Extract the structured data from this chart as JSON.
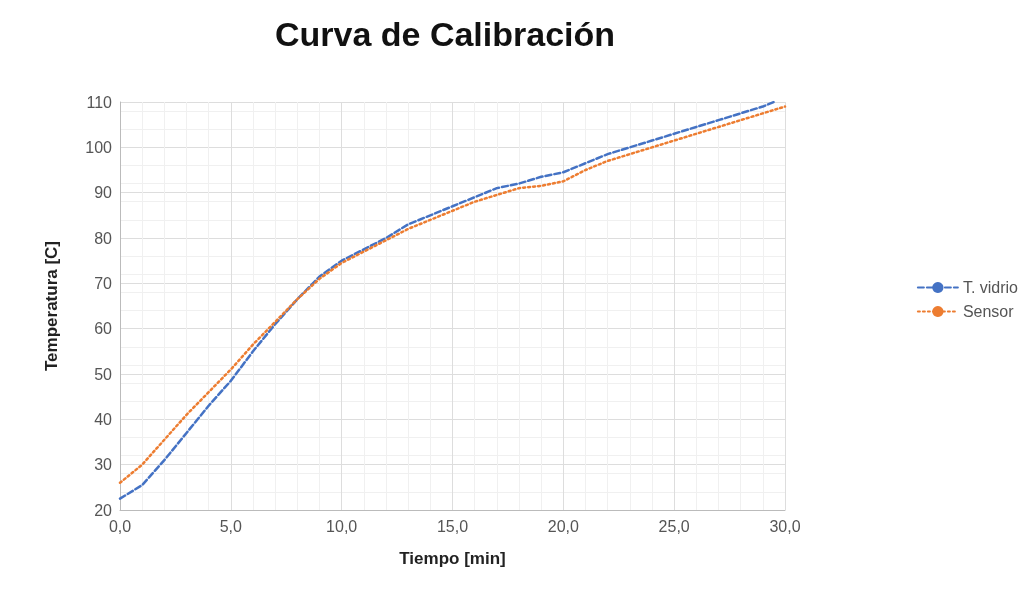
{
  "chart_data": {
    "type": "line",
    "title": "Curva de Calibración",
    "xlabel": "Tiempo [min]",
    "ylabel": "Temperatura [C]",
    "xlim": [
      0,
      30
    ],
    "xticks": [
      {
        "value": 0,
        "label": "0,0"
      },
      {
        "value": 5,
        "label": "5,0"
      },
      {
        "value": 10,
        "label": "10,0"
      },
      {
        "value": 15,
        "label": "15,0"
      },
      {
        "value": 20,
        "label": "20,0"
      },
      {
        "value": 25,
        "label": "25,0"
      },
      {
        "value": 30,
        "label": "30,0"
      }
    ],
    "ylim": [
      20,
      110
    ],
    "yticks": [
      20,
      30,
      40,
      50,
      60,
      70,
      80,
      90,
      100,
      110
    ],
    "grid": true,
    "legend": "right",
    "marker": "none",
    "series": [
      {
        "name": "T. vidrio",
        "color": "#4472c4",
        "line_style": "dashed",
        "x": [
          0,
          1,
          2,
          3,
          4,
          5,
          6,
          7,
          8,
          9,
          10,
          11,
          12,
          13,
          14,
          15,
          16,
          17,
          18,
          19,
          20,
          21,
          22,
          23,
          24,
          25,
          26,
          27,
          28,
          29,
          29.5
        ],
        "values": [
          22.5,
          25.5,
          31,
          37,
          43,
          48.5,
          55,
          61,
          66.5,
          71.5,
          75,
          77.5,
          80,
          83,
          85,
          87,
          89,
          91,
          92,
          93.5,
          94.5,
          96.5,
          98.5,
          100,
          101.5,
          103,
          104.5,
          106,
          107.5,
          109,
          110
        ]
      },
      {
        "name": "Sensor",
        "color": "#ed7d31",
        "line_style": "dotted",
        "x": [
          0,
          1,
          2,
          3,
          4,
          5,
          6,
          7,
          8,
          9,
          10,
          11,
          12,
          13,
          14,
          15,
          16,
          17,
          18,
          19,
          20,
          21,
          22,
          23,
          24,
          25,
          26,
          27,
          28,
          29,
          30
        ],
        "values": [
          26,
          30,
          35.5,
          41,
          46,
          51,
          56.5,
          61.5,
          66.5,
          71,
          74.5,
          77,
          79.5,
          82,
          84,
          86,
          88,
          89.5,
          91,
          91.5,
          92.5,
          95,
          97,
          98.5,
          100,
          101.5,
          103,
          104.5,
          106,
          107.5,
          109
        ]
      }
    ]
  }
}
